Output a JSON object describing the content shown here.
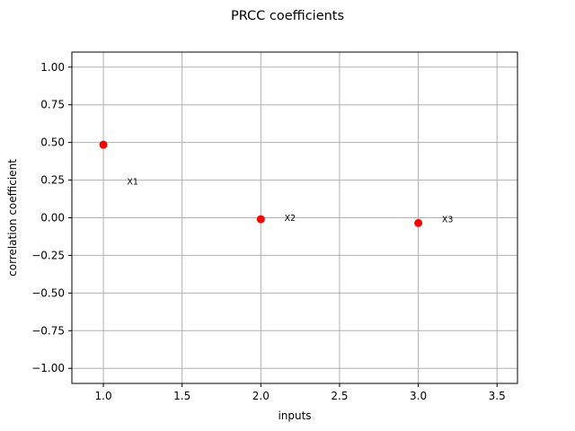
{
  "chart_data": {
    "type": "scatter",
    "title": "PRCC coefficients",
    "xlabel": "inputs",
    "ylabel": "correlation coefficient",
    "xlim": [
      0.8,
      3.63
    ],
    "ylim": [
      -1.1,
      1.1
    ],
    "xticks": [
      1.0,
      1.5,
      2.0,
      2.5,
      3.0,
      3.5
    ],
    "xtick_labels": [
      "1.0",
      "1.5",
      "2.0",
      "2.5",
      "3.0",
      "3.5"
    ],
    "yticks": [
      1.0,
      0.75,
      0.5,
      0.25,
      0.0,
      -0.25,
      -0.5,
      -0.75,
      -1.0
    ],
    "ytick_labels": [
      "1.00",
      "0.75",
      "0.50",
      "0.25",
      "0.00",
      "−0.25",
      "−0.50",
      "−0.75",
      "−1.00"
    ],
    "grid": true,
    "marker_color": "#ff0000",
    "points": [
      {
        "x": 1,
        "y": 0.485
      },
      {
        "x": 2,
        "y": -0.01
      },
      {
        "x": 3,
        "y": -0.035
      }
    ],
    "annotations": [
      {
        "text": "X1",
        "x": 1.15,
        "y": 0.24
      },
      {
        "text": "X2",
        "x": 2.15,
        "y": 0.0
      },
      {
        "text": "X3",
        "x": 3.15,
        "y": -0.01
      }
    ]
  }
}
